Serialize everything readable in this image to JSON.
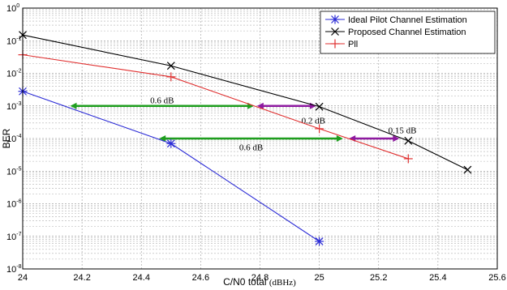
{
  "chart_data": {
    "type": "line",
    "title": "",
    "xlabel": "C/N0 total",
    "xlabel_unit": "(dBHz)",
    "ylabel": "BER",
    "xlim": [
      24,
      25.6
    ],
    "ylim": [
      1e-08,
      1
    ],
    "yscale": "log",
    "grid": true,
    "legend_position": "top-right",
    "x_ticks": [
      "24",
      "24.2",
      "24.4",
      "24.6",
      "24.8",
      "25",
      "25.2",
      "25.4",
      "25.6"
    ],
    "y_tick_base": "10",
    "y_tick_exponents": [
      "0",
      "-1",
      "-2",
      "-3",
      "-4",
      "-5",
      "-6",
      "-7",
      "-8"
    ],
    "series": [
      {
        "name": "Ideal Pilot Channel Estimation",
        "color": "#2b2bd6",
        "marker": "asterisk",
        "x": [
          24,
          24.5,
          25
        ],
        "y": [
          0.0028,
          7e-05,
          7e-08
        ]
      },
      {
        "name": "Proposed Channel Estimation",
        "color": "#000000",
        "marker": "x",
        "x": [
          24,
          24.5,
          25,
          25.3,
          25.5
        ],
        "y": [
          0.15,
          0.017,
          0.00095,
          8.5e-05,
          1.1e-05
        ]
      },
      {
        "name": "Pll",
        "color": "#e03030",
        "marker": "plus",
        "x": [
          24,
          24.5,
          25,
          25.3
        ],
        "y": [
          0.037,
          0.0078,
          0.0002,
          2.4e-05
        ]
      }
    ],
    "annotations": [
      {
        "text": "0.6 dB",
        "x1": 24.16,
        "x2": 24.78,
        "y": 0.001,
        "color": "#1e9e1e",
        "label_x": 24.47,
        "label_y": 0.0015
      },
      {
        "text": "0.2 dB",
        "x1": 24.79,
        "x2": 24.99,
        "y": 0.001,
        "color": "#8e1aa0",
        "label_x": 24.98,
        "label_y": 0.00036
      },
      {
        "text": "0.6 dB",
        "x1": 24.46,
        "x2": 25.08,
        "y": 0.0001,
        "color": "#1e9e1e",
        "label_x": 24.77,
        "label_y": 5.5e-05
      },
      {
        "text": "0.15 dB",
        "x1": 25.1,
        "x2": 25.27,
        "y": 0.0001,
        "color": "#8e1aa0",
        "label_x": 25.28,
        "label_y": 0.00018
      }
    ]
  }
}
